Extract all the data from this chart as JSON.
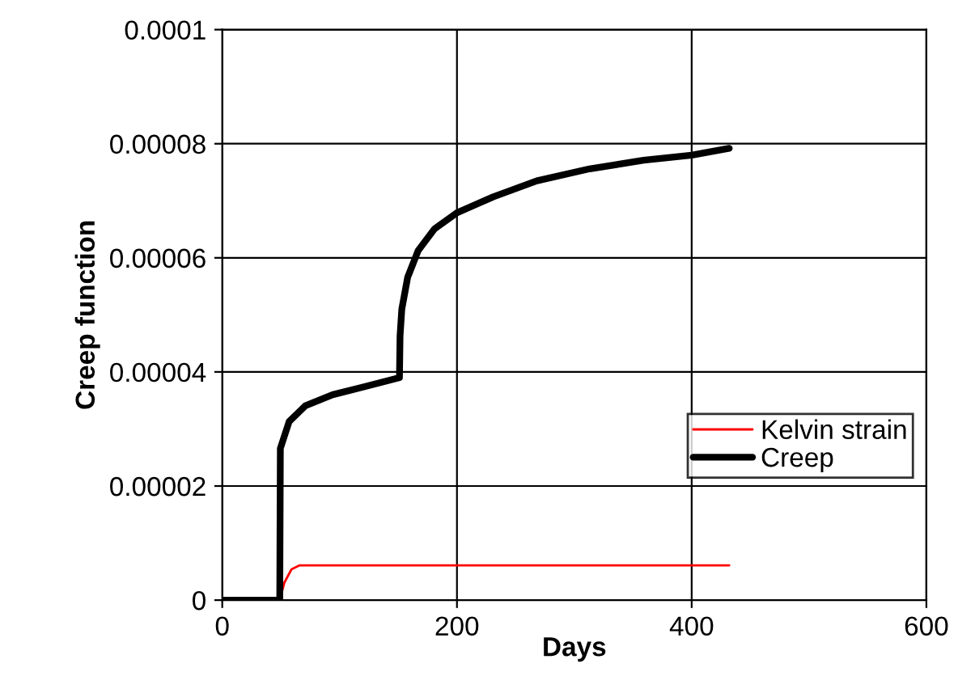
{
  "chart_data": {
    "type": "line",
    "xlabel": "Days",
    "ylabel": "Creep function",
    "xlim": [
      0,
      600
    ],
    "xticks": [
      0,
      200,
      400,
      600
    ],
    "ylim": [
      0,
      0.0001
    ],
    "yticks": [
      {
        "value": 0,
        "label": "0"
      },
      {
        "value": 2e-05,
        "label": "0.00002"
      },
      {
        "value": 4e-05,
        "label": "0.00004"
      },
      {
        "value": 6e-05,
        "label": "0.00006"
      },
      {
        "value": 8e-05,
        "label": "0.00008"
      },
      {
        "value": 0.0001,
        "label": "0.0001"
      }
    ],
    "grid": true,
    "legend": "right",
    "line_style": "solid",
    "marker": "none",
    "series": [
      {
        "name": "Kelvin strain",
        "color": "#ff0000",
        "x": [
          0,
          49,
          53,
          59,
          66,
          432
        ],
        "values": [
          0,
          0,
          3.1e-06,
          5.4e-06,
          6.1e-06,
          6.1e-06
        ]
      },
      {
        "name": "Creep",
        "color": "#000000",
        "x": [
          0,
          49,
          49.5,
          57,
          71,
          94,
          121,
          151,
          151.5,
          153,
          158,
          167,
          181,
          200,
          231,
          268,
          313,
          359,
          400,
          432
        ],
        "values": [
          0,
          0,
          2.66e-05,
          3.13e-05,
          3.41e-05,
          3.6e-05,
          3.74e-05,
          3.9e-05,
          4.63e-05,
          5.1e-05,
          5.66e-05,
          6.13e-05,
          6.51e-05,
          6.79e-05,
          7.07e-05,
          7.35e-05,
          7.56e-05,
          7.71e-05,
          7.8e-05,
          7.92e-05
        ]
      }
    ]
  }
}
